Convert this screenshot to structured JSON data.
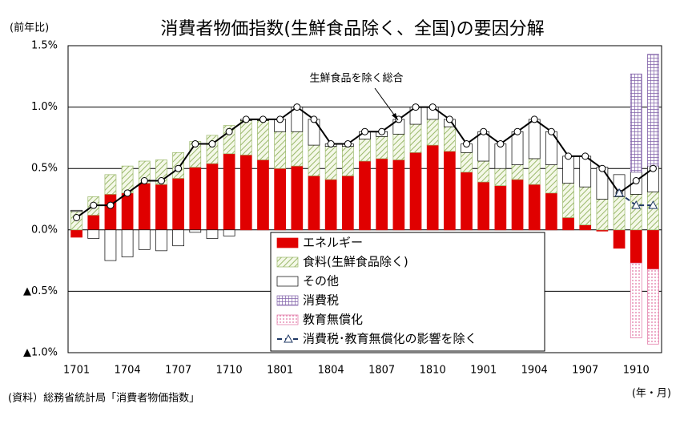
{
  "chart_data": {
    "type": "bar",
    "title": "消費者物価指数(生鮮食品除く、全国)の要因分解",
    "y_label": "(前年比)",
    "x_label": "(年・月)",
    "source": "(資料）総務省統計局「消費者物価指数」",
    "categories": [
      "1701",
      null,
      null,
      "1704",
      null,
      null,
      "1707",
      null,
      null,
      "1710",
      null,
      null,
      "1801",
      null,
      null,
      "1804",
      null,
      null,
      "1807",
      null,
      null,
      "1810",
      null,
      null,
      "1901",
      null,
      null,
      "1904",
      null,
      null,
      "1907",
      null,
      null,
      "1910",
      null
    ],
    "series": [
      {
        "name": "エネルギー",
        "kind": "bar",
        "pattern": "solid",
        "color": "#e00000",
        "values": [
          -0.06,
          0.12,
          0.29,
          0.3,
          0.38,
          0.37,
          0.42,
          0.51,
          0.54,
          0.62,
          0.61,
          0.57,
          0.5,
          0.52,
          0.44,
          0.41,
          0.44,
          0.56,
          0.58,
          0.57,
          0.63,
          0.69,
          0.64,
          0.47,
          0.39,
          0.36,
          0.41,
          0.37,
          0.3,
          0.1,
          0.04,
          -0.01,
          -0.15,
          -0.27,
          -0.32
        ]
      },
      {
        "name": "食料(生鮮食品除く)",
        "kind": "bar",
        "pattern": "hatch",
        "color": "#9ab86a",
        "values": [
          0.15,
          0.15,
          0.16,
          0.22,
          0.18,
          0.2,
          0.21,
          0.21,
          0.23,
          0.23,
          0.28,
          0.32,
          0.3,
          0.28,
          0.25,
          0.27,
          0.24,
          0.18,
          0.18,
          0.21,
          0.23,
          0.21,
          0.2,
          0.16,
          0.17,
          0.14,
          0.12,
          0.21,
          0.23,
          0.28,
          0.31,
          0.25,
          0.27,
          0.29,
          0.31
        ]
      },
      {
        "name": "その他",
        "kind": "bar",
        "pattern": "none",
        "color": "#000000",
        "values": [
          0.01,
          -0.07,
          -0.25,
          -0.22,
          -0.16,
          -0.17,
          -0.13,
          -0.02,
          -0.07,
          -0.05,
          0.01,
          0.01,
          0.1,
          0.2,
          0.21,
          0.02,
          0.02,
          0.06,
          0.04,
          0.12,
          0.14,
          0.1,
          0.06,
          0.07,
          0.24,
          0.2,
          0.27,
          0.32,
          0.27,
          0.22,
          0.25,
          0.26,
          0.18,
          0.18,
          0.21
        ]
      },
      {
        "name": "消費税",
        "kind": "bar",
        "pattern": "grid",
        "color": "#8060a8",
        "values": [
          null,
          null,
          null,
          null,
          null,
          null,
          null,
          null,
          null,
          null,
          null,
          null,
          null,
          null,
          null,
          null,
          null,
          null,
          null,
          null,
          null,
          null,
          null,
          null,
          null,
          null,
          null,
          null,
          null,
          null,
          null,
          null,
          null,
          0.8,
          0.91
        ]
      },
      {
        "name": "教育無償化",
        "kind": "bar",
        "pattern": "dots",
        "color": "#e070a0",
        "values": [
          null,
          null,
          null,
          null,
          null,
          null,
          null,
          null,
          null,
          null,
          null,
          null,
          null,
          null,
          null,
          null,
          null,
          null,
          null,
          null,
          null,
          null,
          null,
          null,
          null,
          null,
          null,
          null,
          null,
          null,
          null,
          null,
          null,
          -0.61,
          -0.61
        ]
      },
      {
        "name": "生鮮食品を除く総合",
        "kind": "line",
        "marker": "circle",
        "dash": false,
        "legend": false,
        "color": "#000000",
        "values": [
          0.1,
          0.2,
          0.2,
          0.3,
          0.4,
          0.4,
          0.5,
          0.7,
          0.7,
          0.8,
          0.9,
          0.9,
          0.9,
          1.0,
          0.9,
          0.7,
          0.7,
          0.8,
          0.8,
          0.9,
          1.0,
          1.0,
          0.9,
          0.7,
          0.8,
          0.7,
          0.8,
          0.9,
          0.8,
          0.6,
          0.6,
          0.5,
          0.3,
          0.4,
          0.5
        ]
      },
      {
        "name": "消費税･教育無償化の影響を除く",
        "kind": "line",
        "marker": "triangle",
        "dash": true,
        "legend": true,
        "color": "#1f3864",
        "values": [
          null,
          null,
          null,
          null,
          null,
          null,
          null,
          null,
          null,
          null,
          null,
          null,
          null,
          null,
          null,
          null,
          null,
          null,
          null,
          null,
          null,
          null,
          null,
          null,
          null,
          null,
          null,
          null,
          null,
          null,
          null,
          null,
          0.3,
          0.2,
          0.2
        ]
      }
    ],
    "ylim": [
      -1.0,
      1.5
    ],
    "yticks": [
      {
        "value": 1.5,
        "label": "1.5%"
      },
      {
        "value": 1.0,
        "label": "1.0%"
      },
      {
        "value": 0.5,
        "label": "0.5%"
      },
      {
        "value": 0.0,
        "label": "0.0%"
      },
      {
        "value": -0.5,
        "label": "▲0.5%"
      },
      {
        "value": -1.0,
        "label": "▲1.0%"
      }
    ],
    "grid": true
  }
}
